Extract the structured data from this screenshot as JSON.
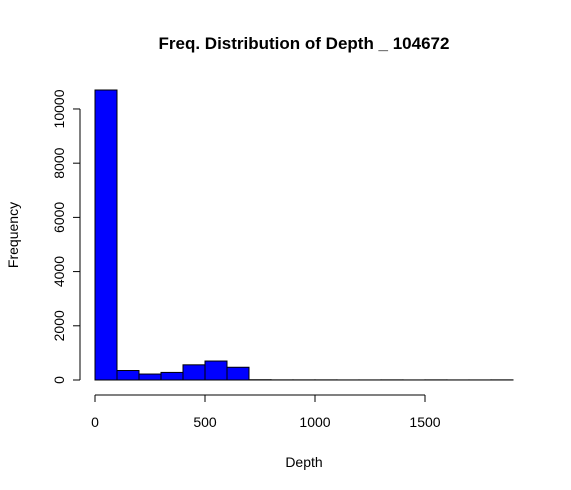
{
  "chart_data": {
    "type": "bar",
    "title": "Freq. Distribution of Depth _ 104672",
    "xlabel": "Depth",
    "ylabel": "Frequency",
    "bins": [
      {
        "start": 0,
        "end": 100,
        "count": 10700
      },
      {
        "start": 100,
        "end": 200,
        "count": 350
      },
      {
        "start": 200,
        "end": 300,
        "count": 220
      },
      {
        "start": 300,
        "end": 400,
        "count": 280
      },
      {
        "start": 400,
        "end": 500,
        "count": 560
      },
      {
        "start": 500,
        "end": 600,
        "count": 700
      },
      {
        "start": 600,
        "end": 700,
        "count": 470
      },
      {
        "start": 700,
        "end": 800,
        "count": 10
      },
      {
        "start": 800,
        "end": 900,
        "count": 5
      },
      {
        "start": 900,
        "end": 1000,
        "count": 5
      },
      {
        "start": 1000,
        "end": 1100,
        "count": 5
      },
      {
        "start": 1100,
        "end": 1200,
        "count": 3
      },
      {
        "start": 1200,
        "end": 1300,
        "count": 3
      },
      {
        "start": 1300,
        "end": 1400,
        "count": 5
      },
      {
        "start": 1400,
        "end": 1500,
        "count": 3
      },
      {
        "start": 1500,
        "end": 1600,
        "count": 5
      },
      {
        "start": 1600,
        "end": 1700,
        "count": 3
      },
      {
        "start": 1700,
        "end": 1800,
        "count": 3
      },
      {
        "start": 1800,
        "end": 1900,
        "count": 5
      }
    ],
    "x_ticks": [
      0,
      500,
      1000,
      1500
    ],
    "y_ticks": [
      0,
      2000,
      4000,
      6000,
      8000,
      10000
    ],
    "xlim": [
      0,
      1900
    ],
    "ylim": [
      0,
      10700
    ],
    "bar_color": "#0000ff",
    "bar_border": "#000000",
    "grid": false
  }
}
